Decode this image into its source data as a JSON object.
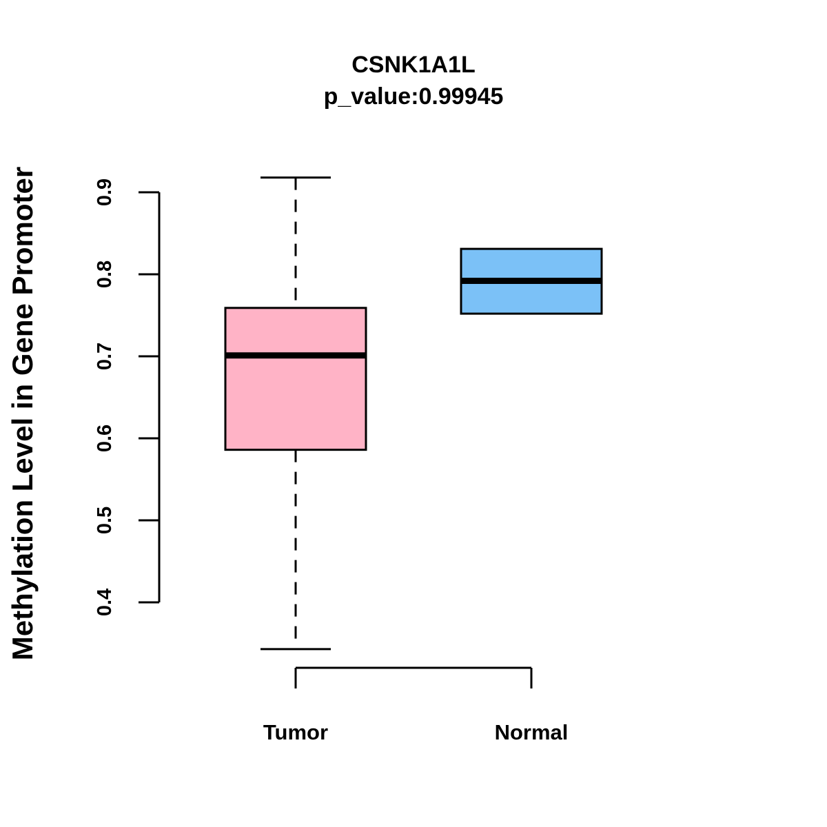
{
  "chart_data": {
    "type": "boxplot",
    "title": "CSNK1A1L",
    "subtitle": "p_value:0.99945",
    "xlabel": "",
    "ylabel": "Methylation Level in Gene Promoter",
    "ylim": [
      0.4,
      0.9
    ],
    "yticks": [
      "0.4",
      "0.5",
      "0.6",
      "0.7",
      "0.8",
      "0.9"
    ],
    "series": [
      {
        "name": "Tumor",
        "min": 0.343,
        "q1": 0.586,
        "median": 0.701,
        "q3": 0.759,
        "max": 0.918,
        "color": "#FFB3C6"
      },
      {
        "name": "Normal",
        "min": 0.752,
        "q1": 0.752,
        "median": 0.792,
        "q3": 0.831,
        "max": 0.831,
        "color": "#7BC1F7"
      }
    ]
  }
}
